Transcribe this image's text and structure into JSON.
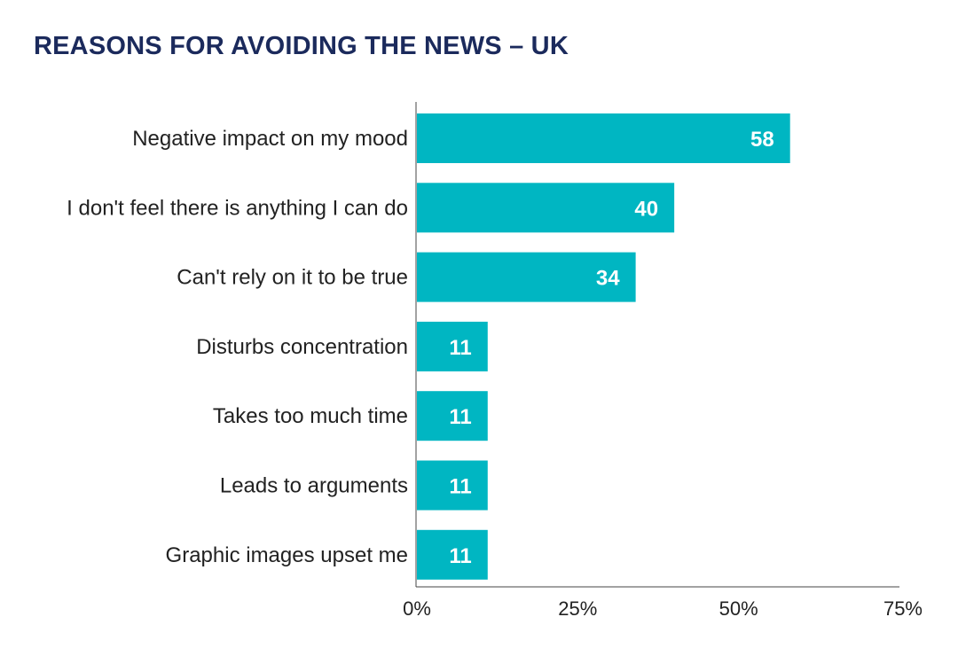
{
  "colors": {
    "bar": "#00b6c2",
    "title": "#1b2a5c",
    "axis": "#444444"
  },
  "chart_data": {
    "type": "bar",
    "orientation": "horizontal",
    "title": "REASONS FOR AVOIDING THE NEWS – UK",
    "categories": [
      "Negative impact on my mood",
      "I don't feel there is anything I can do",
      "Can't rely on it to be true",
      "Disturbs concentration",
      "Takes too much time",
      "Leads to arguments",
      "Graphic images upset me"
    ],
    "values": [
      58,
      40,
      34,
      11,
      11,
      11,
      11
    ],
    "value_labels": [
      "58",
      "40",
      "34",
      "11",
      "11",
      "11",
      "11"
    ],
    "xlim": [
      0,
      75
    ],
    "xticks": [
      0,
      25,
      50,
      75
    ],
    "xtick_labels": [
      "0%",
      "25%",
      "50%",
      "75%"
    ],
    "grid": false,
    "legend": "none"
  }
}
